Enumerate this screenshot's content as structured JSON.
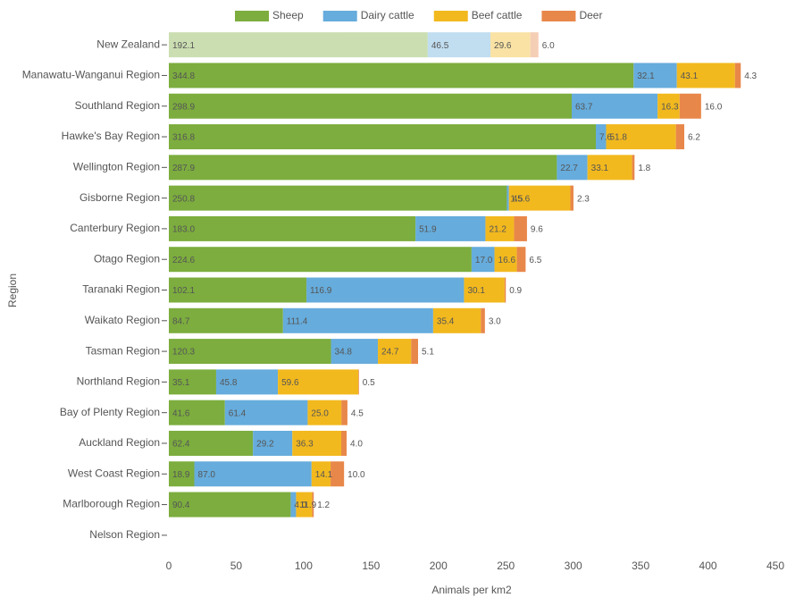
{
  "chart_data": {
    "type": "bar",
    "orientation": "horizontal",
    "stacked": true,
    "x_label": "Animals per km2",
    "y_label": "Region",
    "categories": [
      "New Zealand",
      "Manawatu-Wanganui Region",
      "Southland Region",
      "Hawke's Bay Region",
      "Wellington Region",
      "Gisborne Region",
      "Canterbury Region",
      "Otago Region",
      "Taranaki Region",
      "Waikato Region",
      "Tasman Region",
      "Northland Region",
      "Bay of Plenty Region",
      "Auckland Region",
      "West Coast Region",
      "Marlborough Region",
      "Nelson Region"
    ],
    "series": [
      {
        "name": "Sheep",
        "color": "#7cad3e",
        "values": [
          192.1,
          344.8,
          298.9,
          316.8,
          287.9,
          250.8,
          183.0,
          224.6,
          102.1,
          84.7,
          120.3,
          35.1,
          41.6,
          62.4,
          18.9,
          90.4,
          null
        ],
        "value_labels": [
          "192.1",
          "344.8",
          "298.9",
          "316.8",
          "287.9",
          "250.8",
          "183.0",
          "224.6",
          "102.1",
          "84.7",
          "120.3",
          "35.1",
          "41.6",
          "62.4",
          "18.9",
          "90.4",
          null
        ]
      },
      {
        "name": "Dairy cattle",
        "color": "#66acdc",
        "values": [
          46.5,
          32.1,
          63.7,
          7.6,
          22.7,
          1.5,
          51.9,
          17.0,
          116.9,
          111.4,
          34.8,
          45.8,
          61.4,
          29.2,
          87.0,
          4.0,
          null
        ],
        "value_labels": [
          "46.5",
          "32.1",
          "63.7",
          "7.6",
          "22.7",
          "1.5",
          "51.9",
          "17.0",
          "116.9",
          "111.4",
          "34.8",
          "45.8",
          "61.4",
          "29.2",
          "87.0",
          "4.0",
          null
        ]
      },
      {
        "name": "Beef cattle",
        "color": "#f2b91e",
        "values": [
          29.6,
          43.1,
          16.3,
          51.8,
          33.1,
          45.6,
          21.2,
          16.6,
          30.1,
          35.4,
          24.7,
          59.6,
          25.0,
          36.3,
          14.1,
          11.9,
          null
        ],
        "value_labels": [
          "29.6",
          "43.1",
          "16.3",
          "51.8",
          "33.1",
          "45.6",
          "21.2",
          "16.6",
          "30.1",
          "35.4",
          "24.7",
          "59.6",
          "25.0",
          "36.3",
          "14.1",
          "11.9",
          null
        ]
      },
      {
        "name": "Deer",
        "color": "#e8874a",
        "values": [
          6.0,
          4.3,
          16.0,
          6.2,
          1.8,
          2.3,
          9.6,
          6.5,
          0.9,
          3.0,
          5.1,
          0.5,
          4.5,
          4.0,
          10.0,
          1.2,
          null
        ],
        "value_labels": [
          "6.0",
          "4.3",
          "16.0",
          "6.2",
          "1.8",
          "2.3",
          "9.6",
          "6.5",
          "0.9",
          "3.0",
          "5.1",
          "0.5",
          "4.5",
          "4.0",
          "10.0",
          "1.2",
          null
        ]
      }
    ],
    "xlim": [
      0,
      450
    ],
    "xticks": [
      0,
      50,
      100,
      150,
      200,
      250,
      300,
      350,
      400,
      450
    ],
    "grid": false,
    "legend": "top"
  }
}
